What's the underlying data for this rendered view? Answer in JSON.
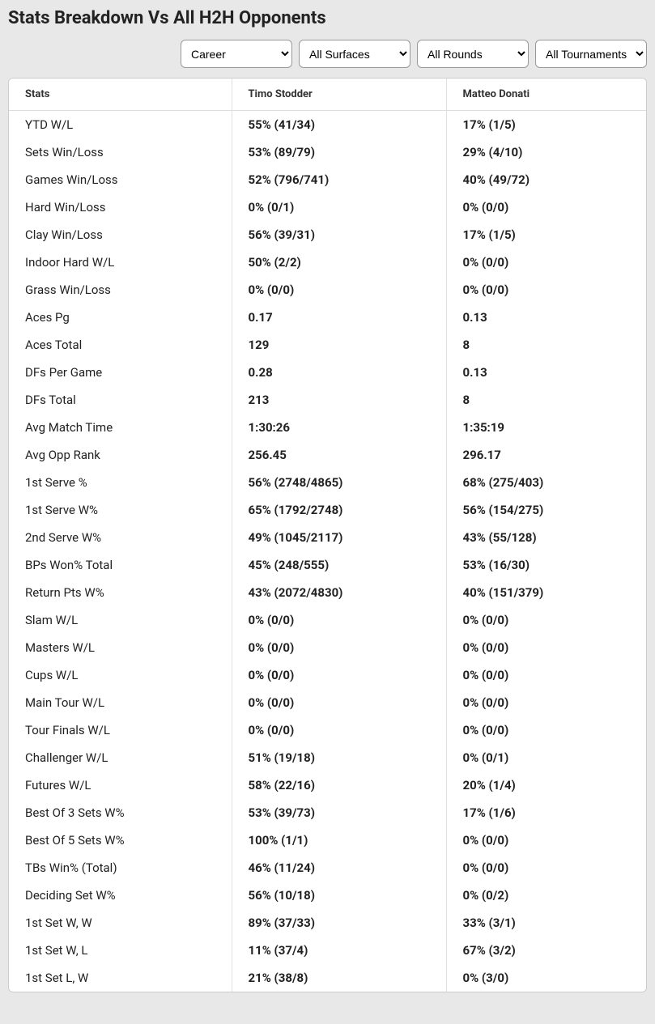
{
  "title": "Stats Breakdown Vs All H2H Opponents",
  "filters": {
    "timeframe": "Career",
    "surface": "All Surfaces",
    "round": "All Rounds",
    "tournament": "All Tournaments"
  },
  "columns": {
    "stats": "Stats",
    "player1": "Timo Stodder",
    "player2": "Matteo Donati"
  },
  "rows": [
    {
      "label": "YTD W/L",
      "p1": "55% (41/34)",
      "p2": "17% (1/5)"
    },
    {
      "label": "Sets Win/Loss",
      "p1": "53% (89/79)",
      "p2": "29% (4/10)"
    },
    {
      "label": "Games Win/Loss",
      "p1": "52% (796/741)",
      "p2": "40% (49/72)"
    },
    {
      "label": "Hard Win/Loss",
      "p1": "0% (0/1)",
      "p2": "0% (0/0)"
    },
    {
      "label": "Clay Win/Loss",
      "p1": "56% (39/31)",
      "p2": "17% (1/5)"
    },
    {
      "label": "Indoor Hard W/L",
      "p1": "50% (2/2)",
      "p2": "0% (0/0)"
    },
    {
      "label": "Grass Win/Loss",
      "p1": "0% (0/0)",
      "p2": "0% (0/0)"
    },
    {
      "label": "Aces Pg",
      "p1": "0.17",
      "p2": "0.13"
    },
    {
      "label": "Aces Total",
      "p1": "129",
      "p2": "8"
    },
    {
      "label": "DFs Per Game",
      "p1": "0.28",
      "p2": "0.13"
    },
    {
      "label": "DFs Total",
      "p1": "213",
      "p2": "8"
    },
    {
      "label": "Avg Match Time",
      "p1": "1:30:26",
      "p2": "1:35:19"
    },
    {
      "label": "Avg Opp Rank",
      "p1": "256.45",
      "p2": "296.17"
    },
    {
      "label": "1st Serve %",
      "p1": "56% (2748/4865)",
      "p2": "68% (275/403)"
    },
    {
      "label": "1st Serve W%",
      "p1": "65% (1792/2748)",
      "p2": "56% (154/275)"
    },
    {
      "label": "2nd Serve W%",
      "p1": "49% (1045/2117)",
      "p2": "43% (55/128)"
    },
    {
      "label": "BPs Won% Total",
      "p1": "45% (248/555)",
      "p2": "53% (16/30)"
    },
    {
      "label": "Return Pts W%",
      "p1": "43% (2072/4830)",
      "p2": "40% (151/379)"
    },
    {
      "label": "Slam W/L",
      "p1": "0% (0/0)",
      "p2": "0% (0/0)"
    },
    {
      "label": "Masters W/L",
      "p1": "0% (0/0)",
      "p2": "0% (0/0)"
    },
    {
      "label": "Cups W/L",
      "p1": "0% (0/0)",
      "p2": "0% (0/0)"
    },
    {
      "label": "Main Tour W/L",
      "p1": "0% (0/0)",
      "p2": "0% (0/0)"
    },
    {
      "label": "Tour Finals W/L",
      "p1": "0% (0/0)",
      "p2": "0% (0/0)"
    },
    {
      "label": "Challenger W/L",
      "p1": "51% (19/18)",
      "p2": "0% (0/1)"
    },
    {
      "label": "Futures W/L",
      "p1": "58% (22/16)",
      "p2": "20% (1/4)"
    },
    {
      "label": "Best Of 3 Sets W%",
      "p1": "53% (39/73)",
      "p2": "17% (1/6)"
    },
    {
      "label": "Best Of 5 Sets W%",
      "p1": "100% (1/1)",
      "p2": "0% (0/0)"
    },
    {
      "label": "TBs Win% (Total)",
      "p1": "46% (11/24)",
      "p2": "0% (0/0)"
    },
    {
      "label": "Deciding Set W%",
      "p1": "56% (10/18)",
      "p2": "0% (0/2)"
    },
    {
      "label": "1st Set W, W",
      "p1": "89% (37/33)",
      "p2": "33% (3/1)"
    },
    {
      "label": "1st Set W, L",
      "p1": "11% (37/4)",
      "p2": "67% (3/2)"
    },
    {
      "label": "1st Set L, W",
      "p1": "21% (38/8)",
      "p2": "0% (3/0)"
    }
  ]
}
